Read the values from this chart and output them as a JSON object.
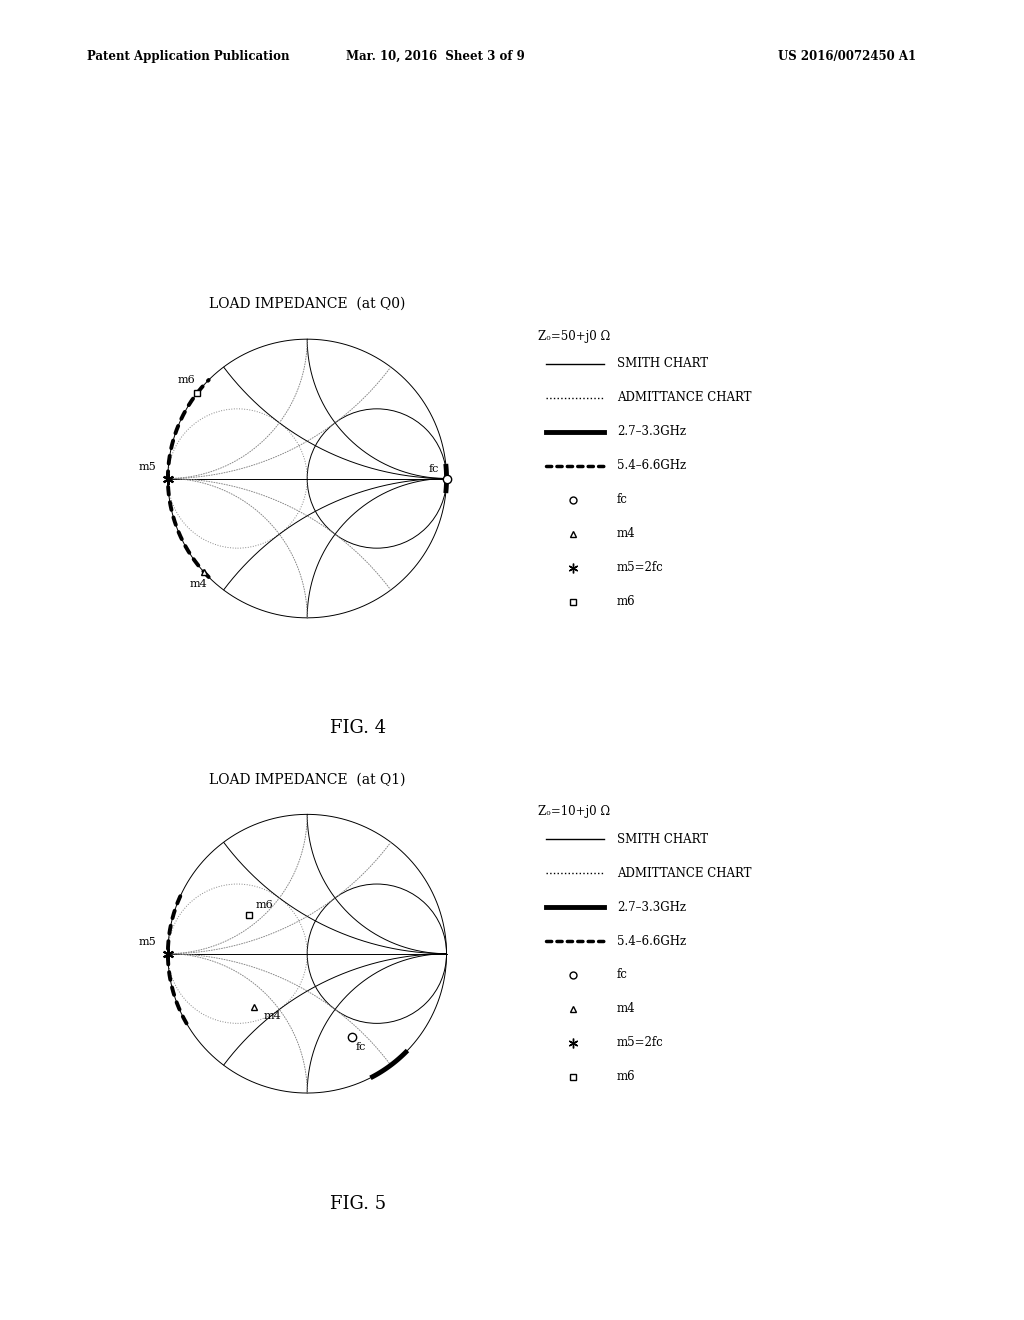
{
  "title1": "LOAD IMPEDANCE  (at Q0)",
  "title2": "LOAD IMPEDANCE  (at Q1)",
  "fig4_label": "FIG. 4",
  "fig5_label": "FIG. 5",
  "header_left": "Patent Application Publication",
  "header_mid": "Mar. 10, 2016  Sheet 3 of 9",
  "header_right": "US 2016/0072450 A1",
  "legend1": {
    "zo": "Zₒ=50+j0 Ω",
    "band1": "2.7–3.3GHz",
    "band2": "5.4–6.6GHz",
    "fc_label": "fc",
    "m4_label": "m4",
    "m5_label": "m5=2fc",
    "m6_label": "m6"
  },
  "legend2": {
    "zo": "Zₒ=10+j0 Ω",
    "band1": "2.7–3.3GHz",
    "band2": "5.4–6.6GHz",
    "fc_label": "fc",
    "m4_label": "m4",
    "m5_label": "m5=2fc",
    "m6_label": "m6"
  },
  "bg_color": "#ffffff"
}
